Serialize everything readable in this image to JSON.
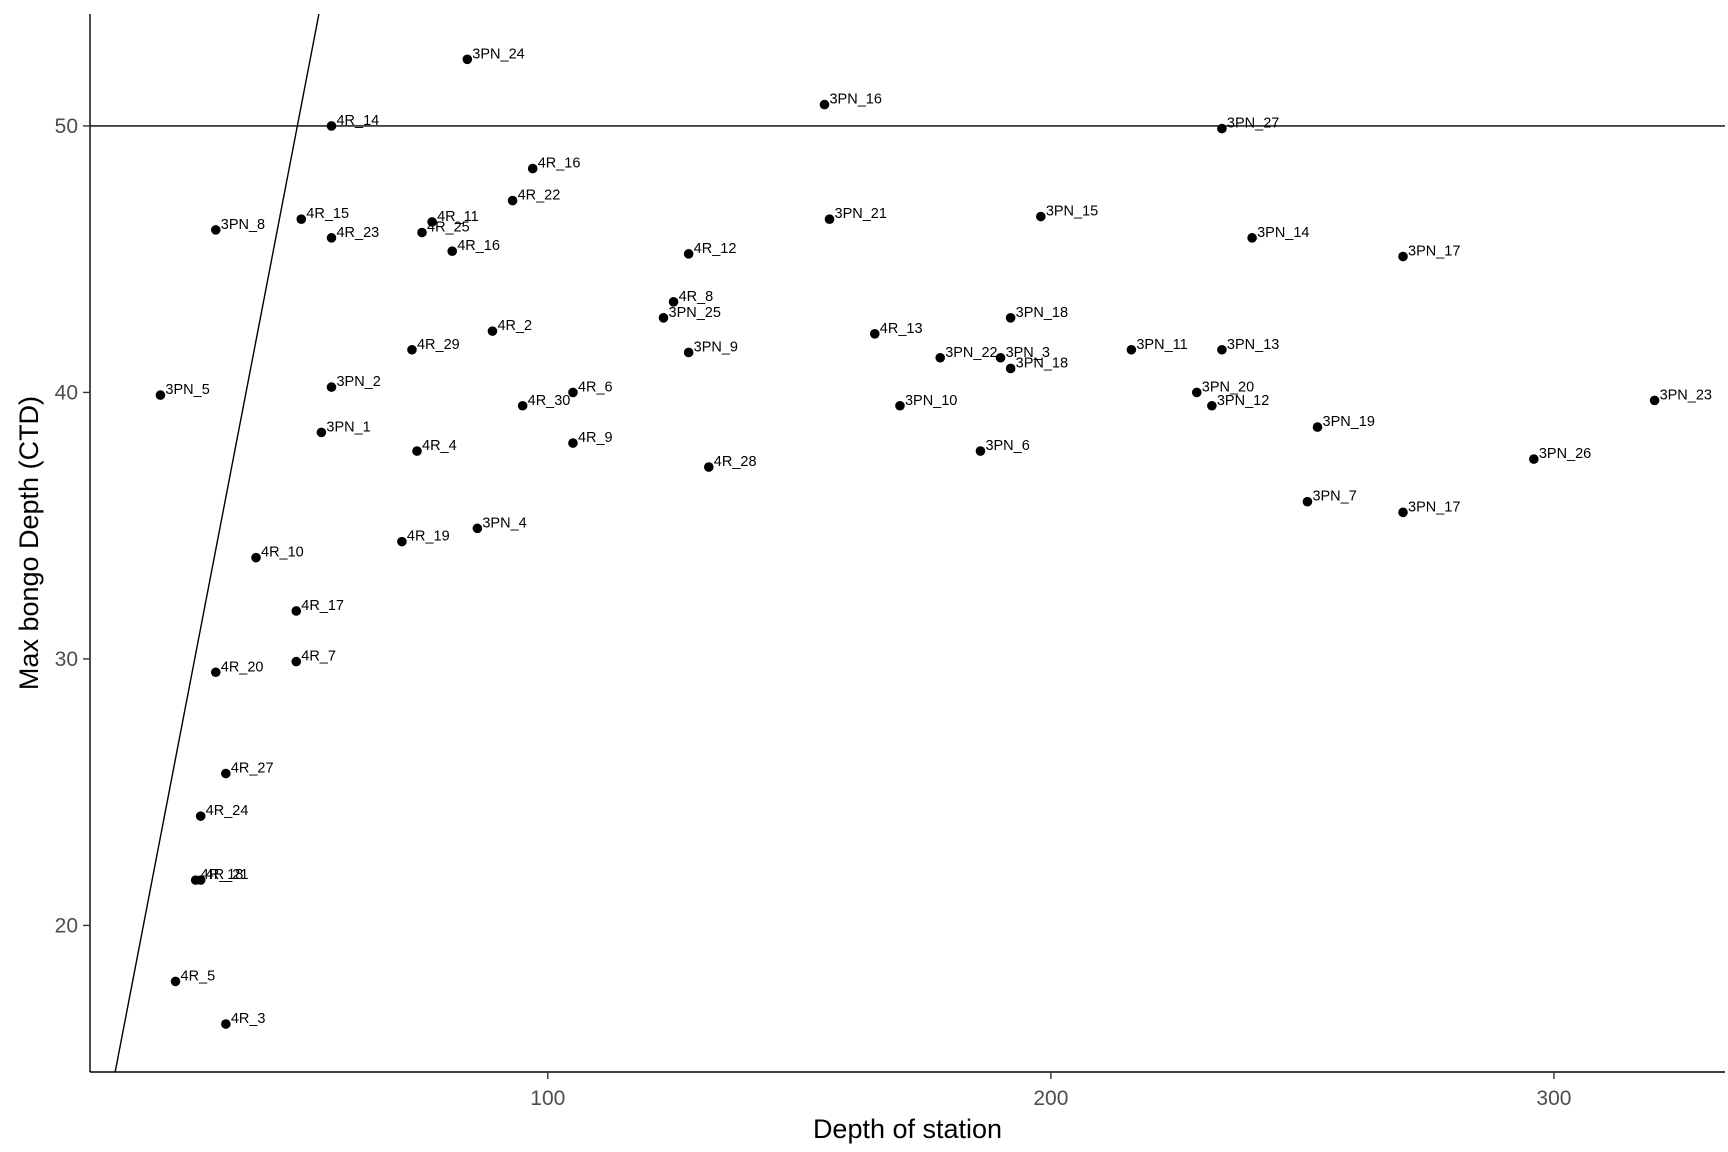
{
  "chart_data": {
    "type": "scatter",
    "title": "",
    "xlabel": "Depth of station",
    "ylabel": "Max bongo Depth (CTD)",
    "xlim": [
      9,
      334
    ],
    "ylim": [
      14.5,
      54.2
    ],
    "xticks": [
      100,
      200,
      300
    ],
    "yticks": [
      20,
      30,
      40,
      50
    ],
    "grid": false,
    "legend": "none",
    "point_color": "#000000",
    "reference_lines": [
      {
        "type": "horizontal",
        "y": 50
      },
      {
        "type": "diagonal",
        "from": [
          14,
          14.5
        ],
        "to": [
          54.5,
          54.2
        ]
      }
    ],
    "points": [
      {
        "label": "3PN_24",
        "x": 84,
        "y": 52.5
      },
      {
        "label": "3PN_16",
        "x": 155,
        "y": 50.8
      },
      {
        "label": "4R_14",
        "x": 57,
        "y": 50.0
      },
      {
        "label": "3PN_27",
        "x": 234,
        "y": 49.9
      },
      {
        "label": "4R_16",
        "x": 97,
        "y": 48.4
      },
      {
        "label": "4R_22",
        "x": 93,
        "y": 47.2
      },
      {
        "label": "3PN_8",
        "x": 34,
        "y": 46.1
      },
      {
        "label": "4R_15",
        "x": 51,
        "y": 46.5
      },
      {
        "label": "4R_23",
        "x": 57,
        "y": 45.8
      },
      {
        "label": "4R_11",
        "x": 77,
        "y": 46.4
      },
      {
        "label": "4R_25",
        "x": 75,
        "y": 46.0
      },
      {
        "label": "4R_16",
        "x": 81,
        "y": 45.3
      },
      {
        "label": "3PN_21",
        "x": 156,
        "y": 46.5
      },
      {
        "label": "3PN_15",
        "x": 198,
        "y": 46.6
      },
      {
        "label": "3PN_14",
        "x": 240,
        "y": 45.8
      },
      {
        "label": "3PN_17",
        "x": 270,
        "y": 45.1
      },
      {
        "label": "4R_12",
        "x": 128,
        "y": 45.2
      },
      {
        "label": "4R_8",
        "x": 125,
        "y": 43.4
      },
      {
        "label": "3PN_25",
        "x": 123,
        "y": 42.8
      },
      {
        "label": "3PN_18",
        "x": 192,
        "y": 42.8
      },
      {
        "label": "4R_2",
        "x": 89,
        "y": 42.3
      },
      {
        "label": "4R_13",
        "x": 165,
        "y": 42.2
      },
      {
        "label": "4R_29",
        "x": 73,
        "y": 41.6
      },
      {
        "label": "3PN_9",
        "x": 128,
        "y": 41.5
      },
      {
        "label": "3PN_11",
        "x": 216,
        "y": 41.6
      },
      {
        "label": "3PN_13",
        "x": 234,
        "y": 41.6
      },
      {
        "label": "3PN_22",
        "x": 178,
        "y": 41.3
      },
      {
        "label": "3PN_3",
        "x": 190,
        "y": 41.3
      },
      {
        "label": "3PN_18",
        "x": 192,
        "y": 40.9
      },
      {
        "label": "3PN_2",
        "x": 57,
        "y": 40.2
      },
      {
        "label": "4R_6",
        "x": 105,
        "y": 40.0
      },
      {
        "label": "3PN_5",
        "x": 23,
        "y": 39.9
      },
      {
        "label": "3PN_20",
        "x": 229,
        "y": 40.0
      },
      {
        "label": "3PN_23",
        "x": 320,
        "y": 39.7
      },
      {
        "label": "4R_30",
        "x": 95,
        "y": 39.5
      },
      {
        "label": "3PN_10",
        "x": 170,
        "y": 39.5
      },
      {
        "label": "3PN_12",
        "x": 232,
        "y": 39.5
      },
      {
        "label": "3PN_1",
        "x": 55,
        "y": 38.5
      },
      {
        "label": "3PN_19",
        "x": 253,
        "y": 38.7
      },
      {
        "label": "4R_9",
        "x": 105,
        "y": 38.1
      },
      {
        "label": "4R_4",
        "x": 74,
        "y": 37.8
      },
      {
        "label": "3PN_6",
        "x": 186,
        "y": 37.8
      },
      {
        "label": "3PN_26",
        "x": 296,
        "y": 37.5
      },
      {
        "label": "4R_28",
        "x": 132,
        "y": 37.2
      },
      {
        "label": "3PN_7",
        "x": 251,
        "y": 35.9
      },
      {
        "label": "3PN_17",
        "x": 270,
        "y": 35.5
      },
      {
        "label": "3PN_4",
        "x": 86,
        "y": 34.9
      },
      {
        "label": "4R_19",
        "x": 71,
        "y": 34.4
      },
      {
        "label": "4R_10",
        "x": 42,
        "y": 33.8
      },
      {
        "label": "4R_17",
        "x": 50,
        "y": 31.8
      },
      {
        "label": "4R_7",
        "x": 50,
        "y": 29.9
      },
      {
        "label": "4R_20",
        "x": 34,
        "y": 29.5
      },
      {
        "label": "4R_27",
        "x": 36,
        "y": 25.7
      },
      {
        "label": "4R_24",
        "x": 31,
        "y": 24.1
      },
      {
        "label": "4R_18",
        "x": 30,
        "y": 21.7
      },
      {
        "label": "4R_21",
        "x": 31,
        "y": 21.7
      },
      {
        "label": "4R_5",
        "x": 26,
        "y": 17.9
      },
      {
        "label": "4R_3",
        "x": 36,
        "y": 16.3
      }
    ]
  }
}
